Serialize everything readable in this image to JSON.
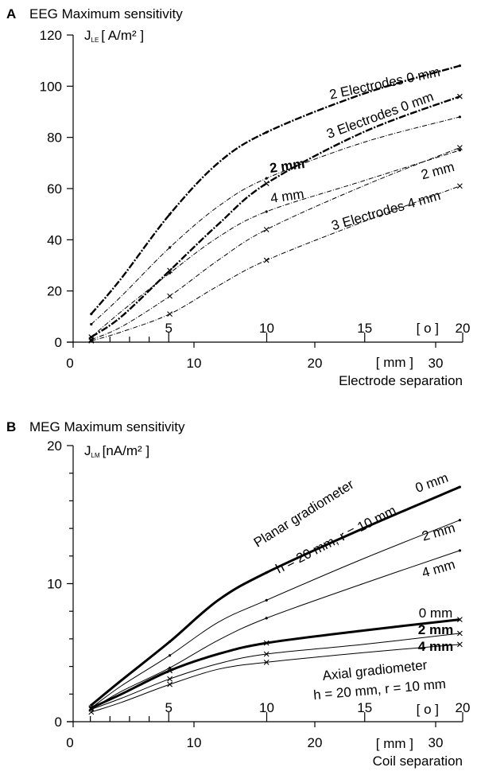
{
  "chart_data": [
    {
      "type": "line",
      "panel_letter": "A",
      "title": "EEG Maximum sensitivity",
      "ylabel": {
        "symbol": "J",
        "subscript": "LE",
        "unit": "[ A/m² ]"
      },
      "xlabel": "Electrode separation",
      "x_unit": "[ mm ]",
      "x2_unit": "[ o ]",
      "ylim": [
        0,
        120
      ],
      "yticks": [
        "0",
        "20",
        "40",
        "60",
        "80",
        "100",
        "120"
      ],
      "xlim": [
        0,
        32.3
      ],
      "xticks": [
        "0",
        "10",
        "20",
        "30"
      ],
      "x2ticks": [
        "5",
        "10",
        "15",
        "20"
      ],
      "grid": false,
      "x": [
        1.5,
        4,
        8,
        12,
        16,
        24,
        32
      ],
      "series": [
        {
          "name": "2 Electrodes 0 mm",
          "values": [
            11,
            25,
            50,
            70,
            82,
            97,
            108
          ],
          "markers": false,
          "weight": "heavy"
        },
        {
          "name": "2 mm",
          "values": [
            7,
            18,
            37,
            53,
            64,
            78,
            88
          ],
          "markers": false,
          "weight": "light"
        },
        {
          "name": "4 mm",
          "values": [
            2,
            12,
            27,
            41,
            51,
            63,
            75
          ],
          "markers": false,
          "weight": "light"
        },
        {
          "name": "3 Electrodes 0 mm",
          "values": [
            2,
            10,
            28,
            46,
            62,
            82,
            96
          ],
          "markers": true,
          "weight": "heavy"
        },
        {
          "name": "2 mm",
          "values": [
            1,
            6,
            18,
            32,
            44,
            61,
            76
          ],
          "markers": true,
          "weight": "light"
        },
        {
          "name": "3 Electrodes 4 mm",
          "values": [
            0.5,
            4,
            11,
            22,
            32,
            47,
            61
          ],
          "markers": true,
          "weight": "light"
        }
      ],
      "annotations": [
        "2 Electrodes 0 mm",
        "3 Electrodes 0 mm",
        "2 mm",
        "4 mm",
        "2 mm",
        "3 Electrodes 4 mm"
      ]
    },
    {
      "type": "line",
      "panel_letter": "B",
      "title": "MEG Maximum sensitivity",
      "ylabel": {
        "symbol": "J",
        "subscript": "LM",
        "unit": "[nA/m² ]"
      },
      "xlabel": "Coil separation",
      "x_unit": "[ mm ]",
      "x2_unit": "[ o ]",
      "ylim": [
        0,
        20
      ],
      "yticks": [
        "0",
        "10",
        "20"
      ],
      "xlim": [
        0,
        32.3
      ],
      "xticks": [
        "0",
        "10",
        "20",
        "30"
      ],
      "x2ticks": [
        "5",
        "10",
        "15",
        "20"
      ],
      "grid": false,
      "x": [
        1.5,
        4,
        8,
        12,
        16,
        24,
        32
      ],
      "series": [
        {
          "name": "Planar gradiometer 0 mm",
          "values": [
            1.2,
            3,
            5.8,
            8.8,
            10.8,
            14,
            17
          ],
          "markers": false,
          "weight": "heavy"
        },
        {
          "name": "Planar gradiometer 2 mm",
          "values": [
            1,
            2.6,
            4.8,
            7.2,
            8.8,
            11.8,
            14.6
          ],
          "markers": false,
          "weight": "light"
        },
        {
          "name": "Planar gradiometer 4 mm",
          "values": [
            0.9,
            2.2,
            3.9,
            5.9,
            7.5,
            10,
            12.4
          ],
          "markers": false,
          "weight": "light"
        },
        {
          "name": "Axial gradiometer 0 mm",
          "values": [
            1,
            2,
            3.7,
            4.9,
            5.7,
            6.6,
            7.4
          ],
          "markers": true,
          "weight": "heavy"
        },
        {
          "name": "Axial gradiometer 2 mm",
          "values": [
            0.9,
            1.7,
            3.1,
            4.2,
            4.9,
            5.6,
            6.4
          ],
          "markers": true,
          "weight": "light"
        },
        {
          "name": "Axial gradiometer 4 mm",
          "values": [
            0.7,
            1.4,
            2.7,
            3.8,
            4.3,
            5.0,
            5.6
          ],
          "markers": true,
          "weight": "light"
        }
      ],
      "annotations": [
        "Planar gradiometer",
        "h = 20 mm, r = 10 mm",
        "0 mm",
        "2 mm",
        "4 mm",
        "0 mm",
        "2 mm",
        "4 mm",
        "Axial gradiometer",
        "h = 20 mm, r = 10 mm"
      ]
    }
  ]
}
